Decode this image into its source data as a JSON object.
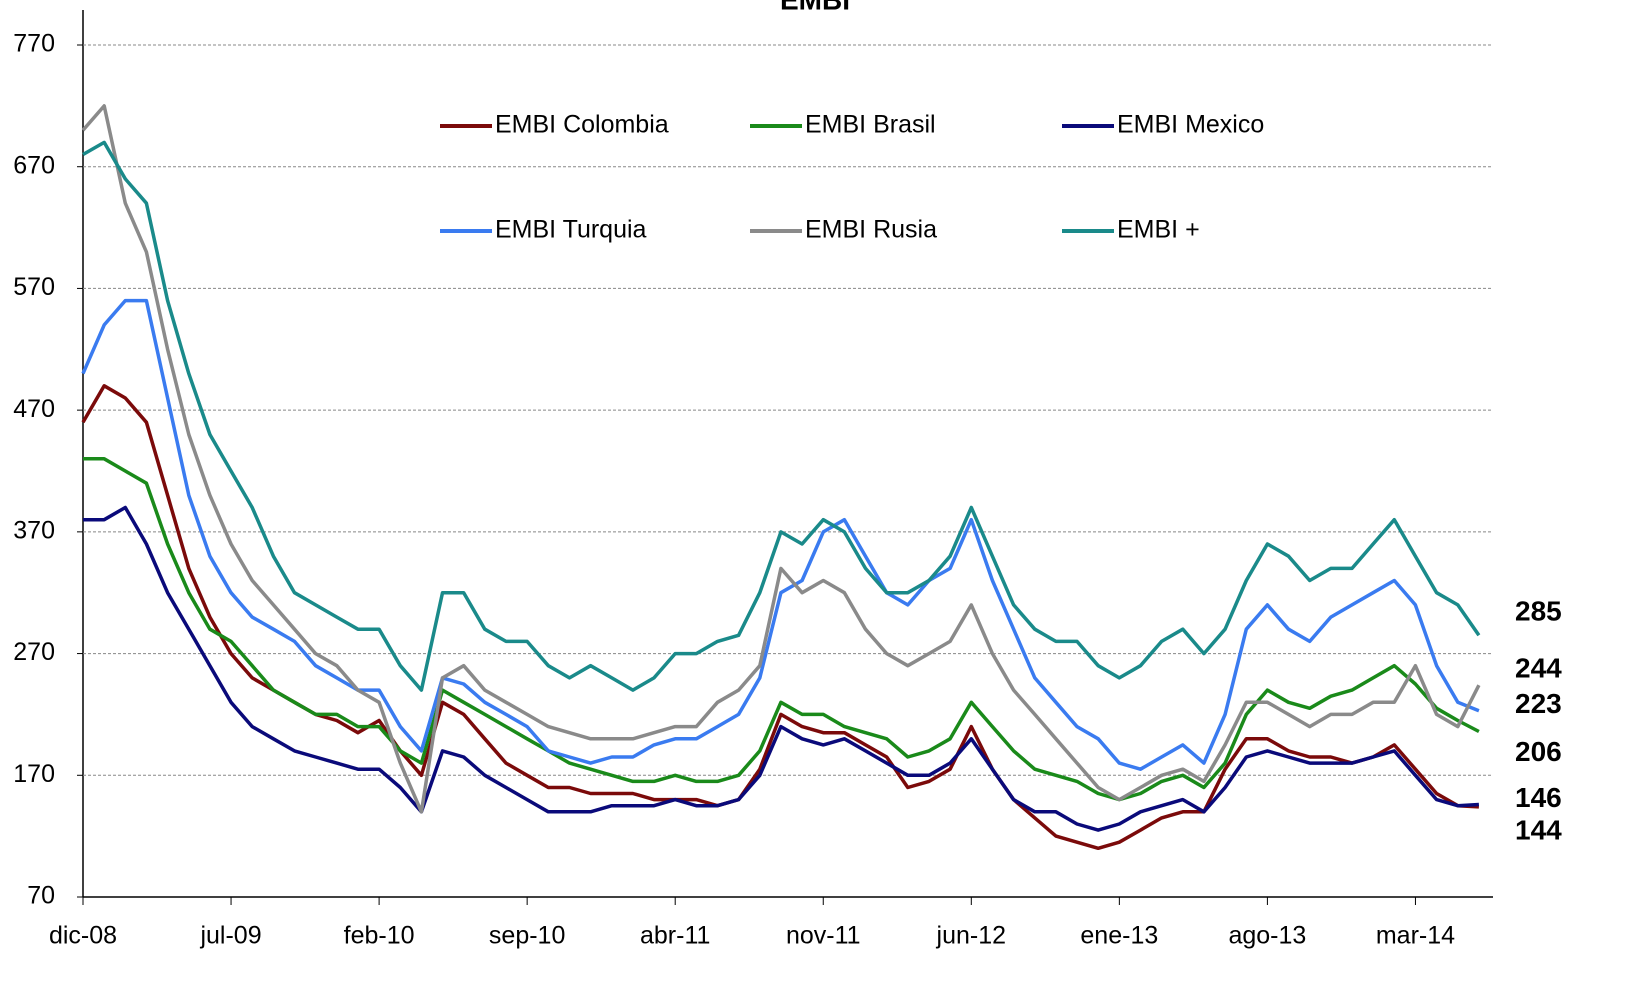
{
  "chart_data": {
    "type": "line",
    "title": "EMBI",
    "categories": [
      "dic-08",
      null,
      null,
      null,
      null,
      null,
      null,
      "jul-09",
      null,
      null,
      null,
      null,
      null,
      null,
      "feb-10",
      null,
      null,
      null,
      null,
      null,
      null,
      "sep-10",
      null,
      null,
      null,
      null,
      null,
      null,
      "abr-11",
      null,
      null,
      null,
      null,
      null,
      null,
      "nov-11",
      null,
      null,
      null,
      null,
      null,
      null,
      "jun-12",
      null,
      null,
      null,
      null,
      null,
      null,
      "ene-13",
      null,
      null,
      null,
      null,
      null,
      null,
      "ago-13",
      null,
      null,
      null,
      null,
      null,
      null,
      "mar-14",
      null,
      null,
      null
    ],
    "series": [
      {
        "name": "EMBI Colombia",
        "color": "#7b0a0a",
        "label_color": "#d01010",
        "values": [
          460,
          490,
          480,
          460,
          400,
          340,
          300,
          270,
          250,
          240,
          230,
          220,
          215,
          205,
          215,
          190,
          170,
          230,
          220,
          200,
          180,
          170,
          160,
          160,
          155,
          155,
          155,
          150,
          150,
          150,
          145,
          150,
          175,
          220,
          210,
          205,
          205,
          195,
          185,
          160,
          165,
          175,
          210,
          175,
          150,
          135,
          120,
          115,
          110,
          115,
          125,
          135,
          140,
          140,
          175,
          200,
          200,
          190,
          185,
          185,
          180,
          185,
          195,
          175,
          155,
          145,
          144
        ]
      },
      {
        "name": "EMBI Brasil",
        "color": "#1a8a1a",
        "label_color": "#1a9a1a",
        "values": [
          430,
          430,
          420,
          410,
          360,
          320,
          290,
          280,
          260,
          240,
          230,
          220,
          220,
          210,
          210,
          190,
          180,
          240,
          230,
          220,
          210,
          200,
          190,
          180,
          175,
          170,
          165,
          165,
          170,
          165,
          165,
          170,
          190,
          230,
          220,
          220,
          210,
          205,
          200,
          185,
          190,
          200,
          230,
          210,
          190,
          175,
          170,
          165,
          155,
          150,
          155,
          165,
          170,
          160,
          180,
          220,
          240,
          230,
          225,
          235,
          240,
          250,
          260,
          245,
          225,
          215,
          206
        ]
      },
      {
        "name": "EMBI Mexico",
        "color": "#0a0a7a",
        "label_color": "#1f3fbf",
        "values": [
          380,
          380,
          390,
          360,
          320,
          290,
          260,
          230,
          210,
          200,
          190,
          185,
          180,
          175,
          175,
          160,
          140,
          190,
          185,
          170,
          160,
          150,
          140,
          140,
          140,
          145,
          145,
          145,
          150,
          145,
          145,
          150,
          170,
          210,
          200,
          195,
          200,
          190,
          180,
          170,
          170,
          180,
          200,
          175,
          150,
          140,
          140,
          130,
          125,
          130,
          140,
          145,
          150,
          140,
          160,
          185,
          190,
          185,
          180,
          180,
          180,
          185,
          190,
          170,
          150,
          145,
          146
        ]
      },
      {
        "name": "EMBI Turquia",
        "color": "#3a7bf0",
        "label_color": "#2f6fe8",
        "values": [
          500,
          540,
          560,
          560,
          480,
          400,
          350,
          320,
          300,
          290,
          280,
          260,
          250,
          240,
          240,
          210,
          190,
          250,
          245,
          230,
          220,
          210,
          190,
          185,
          180,
          185,
          185,
          195,
          200,
          200,
          210,
          220,
          250,
          320,
          330,
          370,
          380,
          350,
          320,
          310,
          330,
          340,
          380,
          330,
          290,
          250,
          230,
          210,
          200,
          180,
          175,
          185,
          195,
          180,
          220,
          290,
          310,
          290,
          280,
          300,
          310,
          320,
          330,
          310,
          260,
          230,
          223
        ]
      },
      {
        "name": "EMBI Rusia",
        "color": "#8a8a8a",
        "label_color": "#8a8a8a",
        "values": [
          700,
          720,
          640,
          600,
          520,
          450,
          400,
          360,
          330,
          310,
          290,
          270,
          260,
          240,
          230,
          180,
          140,
          250,
          260,
          240,
          230,
          220,
          210,
          205,
          200,
          200,
          200,
          205,
          210,
          210,
          230,
          240,
          260,
          340,
          320,
          330,
          320,
          290,
          270,
          260,
          270,
          280,
          310,
          270,
          240,
          220,
          200,
          180,
          160,
          150,
          160,
          170,
          175,
          165,
          195,
          230,
          230,
          220,
          210,
          220,
          220,
          230,
          230,
          260,
          220,
          210,
          244
        ]
      },
      {
        "name": "EMBI +",
        "color": "#1a8a8a",
        "label_color": "#1a6b63",
        "values": [
          680,
          690,
          660,
          640,
          560,
          500,
          450,
          420,
          390,
          350,
          320,
          310,
          300,
          290,
          290,
          260,
          240,
          320,
          320,
          290,
          280,
          280,
          260,
          250,
          260,
          250,
          240,
          250,
          270,
          270,
          280,
          285,
          320,
          370,
          360,
          380,
          370,
          340,
          320,
          320,
          330,
          350,
          390,
          350,
          310,
          290,
          280,
          280,
          260,
          250,
          260,
          280,
          290,
          270,
          290,
          330,
          360,
          350,
          330,
          340,
          340,
          360,
          380,
          350,
          320,
          310,
          285
        ]
      }
    ],
    "ylim": [
      70,
      770
    ],
    "yticks": [
      70,
      170,
      270,
      370,
      470,
      570,
      670,
      770
    ],
    "grid": true
  }
}
